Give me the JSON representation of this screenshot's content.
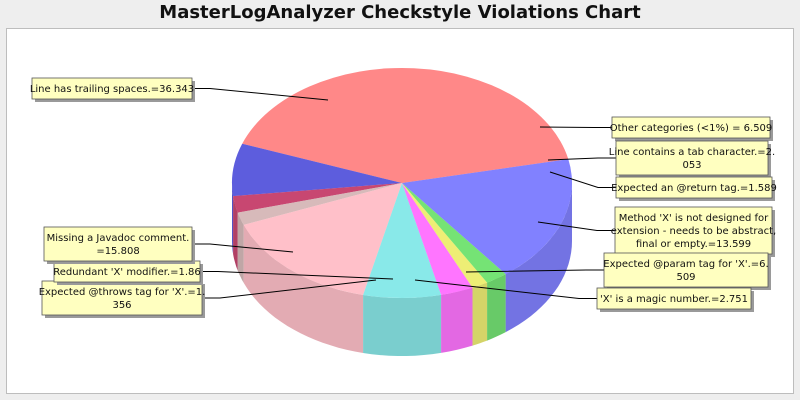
{
  "chart_data": {
    "type": "pie",
    "title": "MasterLogAnalyzer Checkstyle Violations Chart",
    "style": "3d-exploded-translucent",
    "slices": [
      {
        "label": "Line has trailing spaces.=36.343",
        "value": 36.343,
        "color": "#ff5a5a"
      },
      {
        "label": "Other categories (<1%) = 6.509",
        "value": 6.509,
        "color": "#1f1fd0"
      },
      {
        "label": "Line contains a tab character.=2.053",
        "value": 2.053,
        "color": "#b3003a"
      },
      {
        "label": "Expected an @return tag.=1.589",
        "value": 1.589,
        "color": "#c8a0a0"
      },
      {
        "label": "Method 'X' is not designed for extension - needs to be abstract, final or empty.=13.599",
        "value": 13.599,
        "color": "#ffa8b4"
      },
      {
        "label": "Expected @param tag for 'X'.=6.509",
        "value": 6.509,
        "color": "#5ce0e0"
      },
      {
        "label": "'X' is a magic number.=2.751",
        "value": 2.751,
        "color": "#ff40ff"
      },
      {
        "label": "Expected @throws tag for 'X'.=1.356",
        "value": 1.356,
        "color": "#e8e840"
      },
      {
        "label": "Redundant 'X' modifier.=1.86",
        "value": 1.86,
        "color": "#40d840"
      },
      {
        "label": "Missing a Javadoc comment.=15.808",
        "value": 15.808,
        "color": "#5050ff"
      }
    ],
    "callouts": [
      {
        "lines": [
          "Line has trailing spaces.=36.343"
        ]
      },
      {
        "lines": [
          "Other categories (<1%) = 6.509"
        ]
      },
      {
        "lines": [
          "Line contains a tab character.=2.",
          "053"
        ]
      },
      {
        "lines": [
          "Expected an @return tag.=1.589"
        ]
      },
      {
        "lines": [
          "Method 'X' is not designed for",
          "extension - needs to be abstract,",
          "final or empty.=13.599"
        ]
      },
      {
        "lines": [
          "Expected @param tag for 'X'.=6.",
          "509"
        ]
      },
      {
        "lines": [
          "'X' is a magic number.=2.751"
        ]
      },
      {
        "lines": [
          "Expected @throws tag for 'X'.=1.",
          "356"
        ]
      },
      {
        "lines": [
          "Redundant 'X' modifier.=1.86"
        ]
      },
      {
        "lines": [
          "Missing a Javadoc comment.",
          "=15.808"
        ]
      }
    ]
  }
}
